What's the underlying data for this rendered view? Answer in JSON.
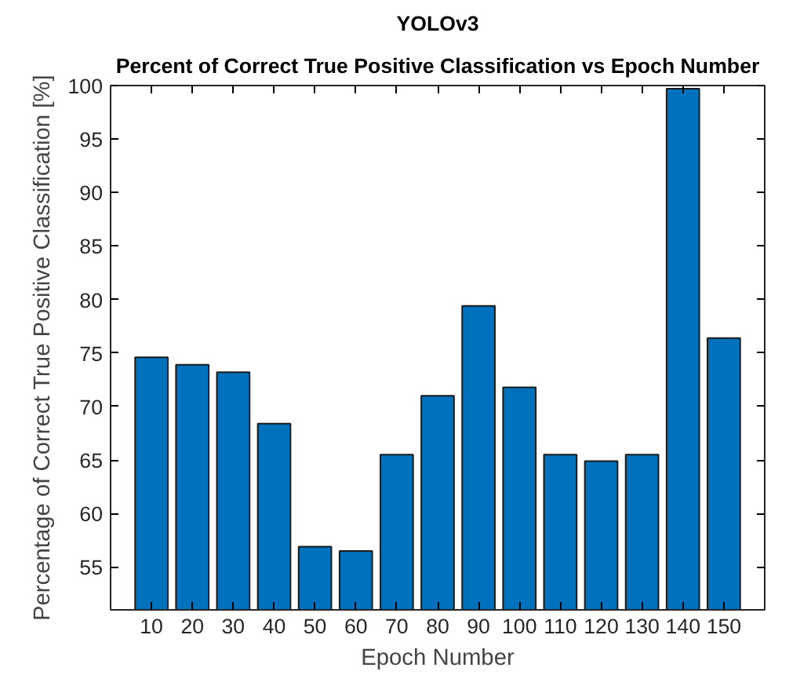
{
  "chart_data": {
    "type": "bar",
    "title": "YOLOv3",
    "subtitle": "Percent of Correct True Positive Classification vs Epoch Number",
    "xlabel": "Epoch Number",
    "ylabel": "Percentage of Correct True Positive Classification [%]",
    "categories": [
      "10",
      "20",
      "30",
      "40",
      "50",
      "60",
      "70",
      "80",
      "90",
      "100",
      "110",
      "120",
      "130",
      "140",
      "150"
    ],
    "values": [
      74.6,
      73.9,
      73.2,
      68.4,
      56.9,
      56.5,
      65.5,
      71.0,
      79.4,
      71.8,
      65.5,
      64.9,
      65.5,
      99.7,
      76.4
    ],
    "color": "#0072bd",
    "ylim": [
      51,
      100
    ],
    "yticks": [
      55,
      60,
      65,
      70,
      75,
      80,
      85,
      90,
      95,
      100
    ],
    "grid": false
  }
}
